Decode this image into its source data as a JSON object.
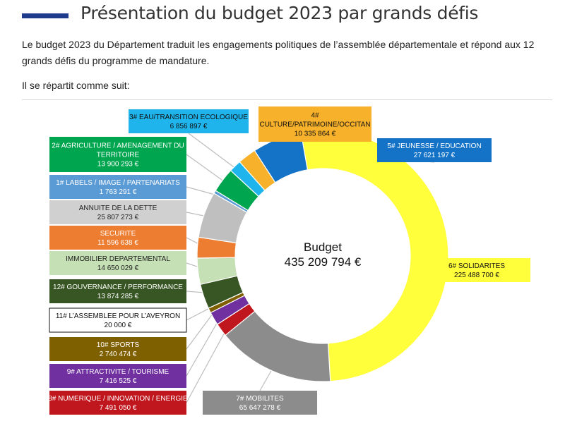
{
  "header": {
    "title": "Présentation du budget 2023 par grands défis",
    "accent": "#1f3a8a"
  },
  "intro": {
    "paragraph": "Le budget 2023 du Département traduit les engagements politiques de l’assemblée départementale et répond aux 12 grands défis du programme de mandature.",
    "lead": "Il se répartit comme suit:"
  },
  "chart_data": {
    "type": "pie",
    "center_label": [
      "Budget",
      "435 209 794 €"
    ],
    "total": 435209794,
    "slices": [
      {
        "name": "6# SOLIDARITES",
        "value": 225488700,
        "value_label": "225 488 700 €",
        "color": "#ffff3c"
      },
      {
        "name": "7# MOBILITES",
        "value": 65647278,
        "value_label": "65 647 278 €",
        "color": "#8c8c8c"
      },
      {
        "name": "8# NUMERIQUE / INNOVATION / ENERGIE",
        "value": 7491050,
        "value_label": "7 491 050 €",
        "color": "#c0161d"
      },
      {
        "name": "9# ATTRACTIVITE / TOURISME",
        "value": 7416525,
        "value_label": "7 416 525 €",
        "color": "#7030a0"
      },
      {
        "name": "10# SPORTS",
        "value": 2740474,
        "value_label": "2 740 474 €",
        "color": "#7f6000"
      },
      {
        "name": "11# L’ASSEMBLEE POUR L’AVEYRON",
        "value": 20000,
        "value_label": "20 000 €",
        "color": "#ffffff"
      },
      {
        "name": "12# GOUVERNANCE / PERFORMANCE",
        "value": 13874285,
        "value_label": "13 874 285 €",
        "color": "#375623"
      },
      {
        "name": "IMMOBILIER DEPARTEMENTAL",
        "value": 14650029,
        "value_label": "14 650 029 €",
        "color": "#c5e0b4"
      },
      {
        "name": "SECURITE",
        "value": 11596638,
        "value_label": "11 596 638 €",
        "color": "#ed7d31"
      },
      {
        "name": "ANNUITE DE LA DETTE",
        "value": 25807273,
        "value_label": "25 807 273 €",
        "color": "#bfbfbf"
      },
      {
        "name": "1# LABELS / IMAGE / PARTENARIATS",
        "value": 1763291,
        "value_label": "1 763 291 €",
        "color": "#5b9bd5"
      },
      {
        "name": "2# AGRICULTURE / AMENAGEMENT DU TERRITOIRE",
        "value": 13900293,
        "value_label": "13 900 293 €",
        "color": "#00a64f"
      },
      {
        "name": "3# EAU/TRANSITION ECOLOGIQUE",
        "value": 6856897,
        "value_label": "6 856 897 €",
        "color": "#1fb4ec"
      },
      {
        "name": "4# CULTURE/PATRIMOINE/OCCITAN",
        "value": 10335864,
        "value_label": "10 335 864 €",
        "color": "#f7b12b"
      },
      {
        "name": "5# JEUNESSE / EDUCATION",
        "value": 27621197,
        "value_label": "27 621 197 €",
        "color": "#1473c6"
      }
    ]
  }
}
